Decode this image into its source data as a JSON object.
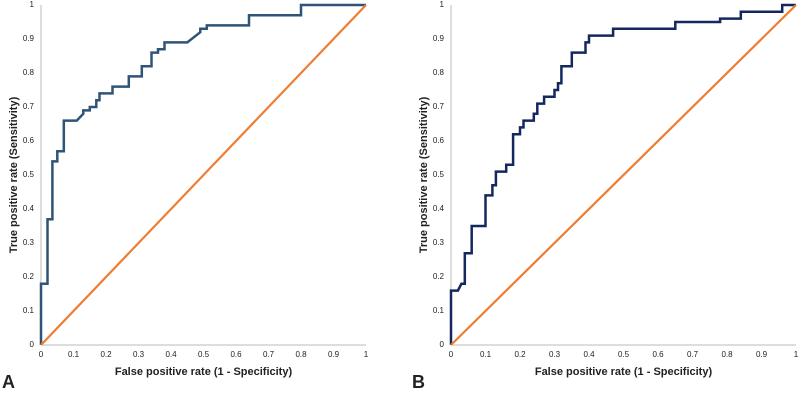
{
  "chart_data": [
    {
      "type": "line",
      "panel": "A",
      "xlabel": "False positive rate (1 - Specificity)",
      "ylabel": "True positive rate (Sensitivity)",
      "xlim": [
        0,
        1
      ],
      "ylim": [
        0,
        1
      ],
      "xticks": [
        0,
        0.1,
        0.2,
        0.3,
        0.4,
        0.5,
        0.6,
        0.7,
        0.8,
        0.9,
        1
      ],
      "yticks": [
        0,
        0.1,
        0.2,
        0.3,
        0.4,
        0.5,
        0.6,
        0.7,
        0.8,
        0.9,
        1
      ],
      "series": [
        {
          "color": "#2e5577",
          "x": [
            0,
            0,
            0.02,
            0.02,
            0.035,
            0.035,
            0.05,
            0.05,
            0.07,
            0.07,
            0.11,
            0.13,
            0.13,
            0.15,
            0.15,
            0.17,
            0.17,
            0.18,
            0.18,
            0.22,
            0.22,
            0.27,
            0.27,
            0.31,
            0.31,
            0.34,
            0.34,
            0.36,
            0.36,
            0.38,
            0.38,
            0.45,
            0.49,
            0.49,
            0.51,
            0.51,
            0.64,
            0.64,
            0.8,
            0.8,
            1
          ],
          "values": [
            0,
            0.18,
            0.18,
            0.37,
            0.37,
            0.54,
            0.54,
            0.57,
            0.57,
            0.66,
            0.66,
            0.68,
            0.69,
            0.69,
            0.7,
            0.7,
            0.72,
            0.72,
            0.74,
            0.74,
            0.76,
            0.76,
            0.79,
            0.79,
            0.82,
            0.82,
            0.86,
            0.86,
            0.87,
            0.87,
            0.89,
            0.89,
            0.92,
            0.93,
            0.93,
            0.94,
            0.94,
            0.97,
            0.97,
            1,
            1
          ]
        },
        {
          "color": "#ed7d31",
          "x": [
            0,
            1
          ],
          "values": [
            0,
            1
          ]
        }
      ]
    },
    {
      "type": "line",
      "panel": "B",
      "xlabel": "False positive rate (1 - Specificity)",
      "ylabel": "True positive rate (Sensitivity)",
      "xlim": [
        0,
        1
      ],
      "ylim": [
        0,
        1
      ],
      "xticks": [
        0,
        0.1,
        0.2,
        0.3,
        0.4,
        0.5,
        0.6,
        0.7,
        0.8,
        0.9,
        1
      ],
      "yticks": [
        0,
        0.1,
        0.2,
        0.3,
        0.4,
        0.5,
        0.6,
        0.7,
        0.8,
        0.9,
        1
      ],
      "series": [
        {
          "color": "#14285e",
          "x": [
            0,
            0,
            0.02,
            0.03,
            0.04,
            0.04,
            0.06,
            0.06,
            0.1,
            0.1,
            0.12,
            0.12,
            0.13,
            0.13,
            0.16,
            0.16,
            0.18,
            0.18,
            0.2,
            0.2,
            0.21,
            0.21,
            0.24,
            0.24,
            0.25,
            0.25,
            0.27,
            0.27,
            0.3,
            0.3,
            0.31,
            0.31,
            0.32,
            0.32,
            0.35,
            0.35,
            0.39,
            0.39,
            0.4,
            0.4,
            0.47,
            0.47,
            0.65,
            0.65,
            0.78,
            0.78,
            0.84,
            0.84,
            0.96,
            0.96,
            1
          ],
          "values": [
            0,
            0.16,
            0.16,
            0.18,
            0.18,
            0.27,
            0.27,
            0.35,
            0.35,
            0.44,
            0.44,
            0.47,
            0.47,
            0.51,
            0.51,
            0.53,
            0.53,
            0.62,
            0.62,
            0.64,
            0.64,
            0.66,
            0.66,
            0.68,
            0.68,
            0.71,
            0.71,
            0.73,
            0.73,
            0.75,
            0.75,
            0.77,
            0.77,
            0.82,
            0.82,
            0.86,
            0.86,
            0.89,
            0.89,
            0.91,
            0.91,
            0.93,
            0.93,
            0.95,
            0.95,
            0.96,
            0.96,
            0.98,
            0.98,
            1,
            1
          ]
        },
        {
          "color": "#ed7d31",
          "x": [
            0,
            1
          ],
          "values": [
            0,
            1
          ]
        }
      ]
    }
  ]
}
